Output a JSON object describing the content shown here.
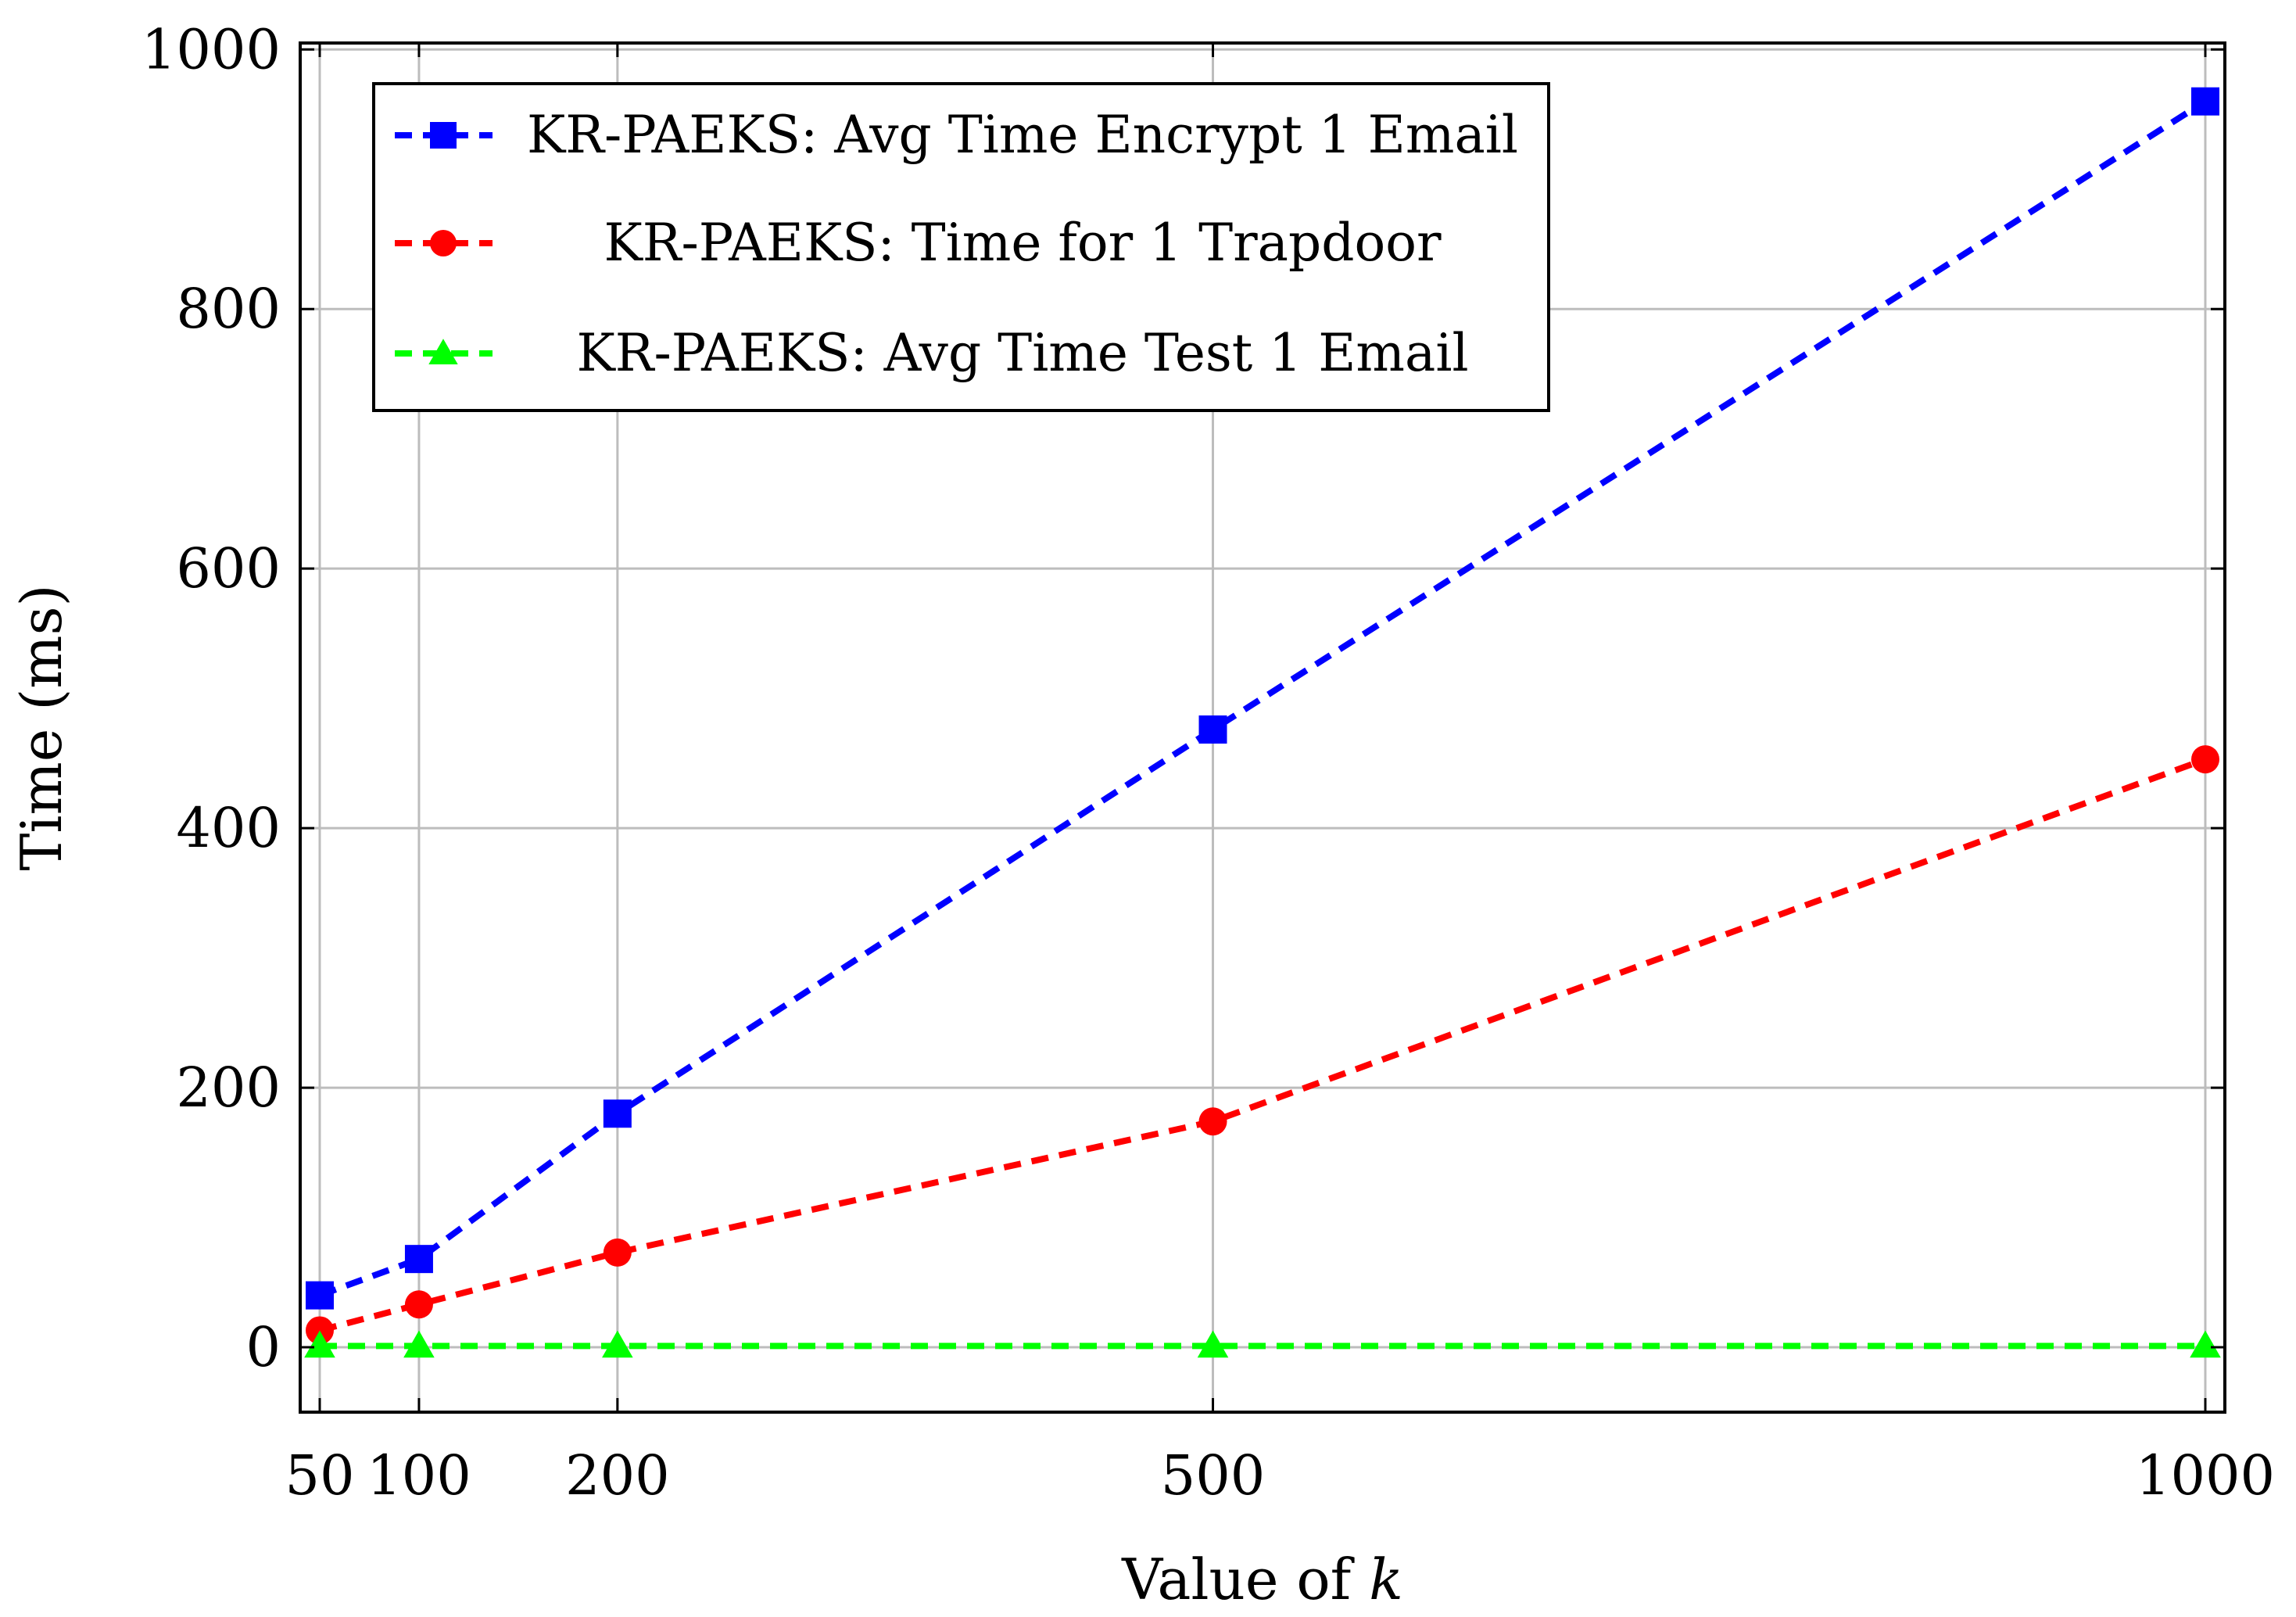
{
  "chart_data": {
    "type": "line",
    "title": "",
    "xlabel": "Value of",
    "xlabel_var": "k",
    "ylabel": "Time (ms)",
    "xlim": [
      40,
      1000
    ],
    "ylim": [
      -50,
      1005
    ],
    "x_ticks": [
      50,
      100,
      200,
      500,
      1000
    ],
    "y_ticks": [
      0,
      200,
      400,
      600,
      800,
      1000
    ],
    "x": [
      50,
      100,
      200,
      500,
      1000
    ],
    "grid": true,
    "legend_position": "top-left",
    "series": [
      {
        "name": "KR-PAEKS: Avg Time Encrypt 1 Email",
        "color": "#0000ff",
        "marker": "square",
        "line_style": "dashed",
        "values": [
          40,
          68,
          180,
          476,
          960
        ]
      },
      {
        "name": "KR-PAEKS: Time for 1 Trapdoor",
        "color": "#ff0000",
        "marker": "circle",
        "line_style": "dashed",
        "values": [
          13,
          33,
          73,
          174,
          453
        ]
      },
      {
        "name": "KR-PAEKS: Avg Time Test 1 Email",
        "color": "#00ff00",
        "marker": "triangle",
        "line_style": "dashed",
        "values": [
          1,
          1,
          1,
          1,
          1
        ]
      }
    ]
  }
}
